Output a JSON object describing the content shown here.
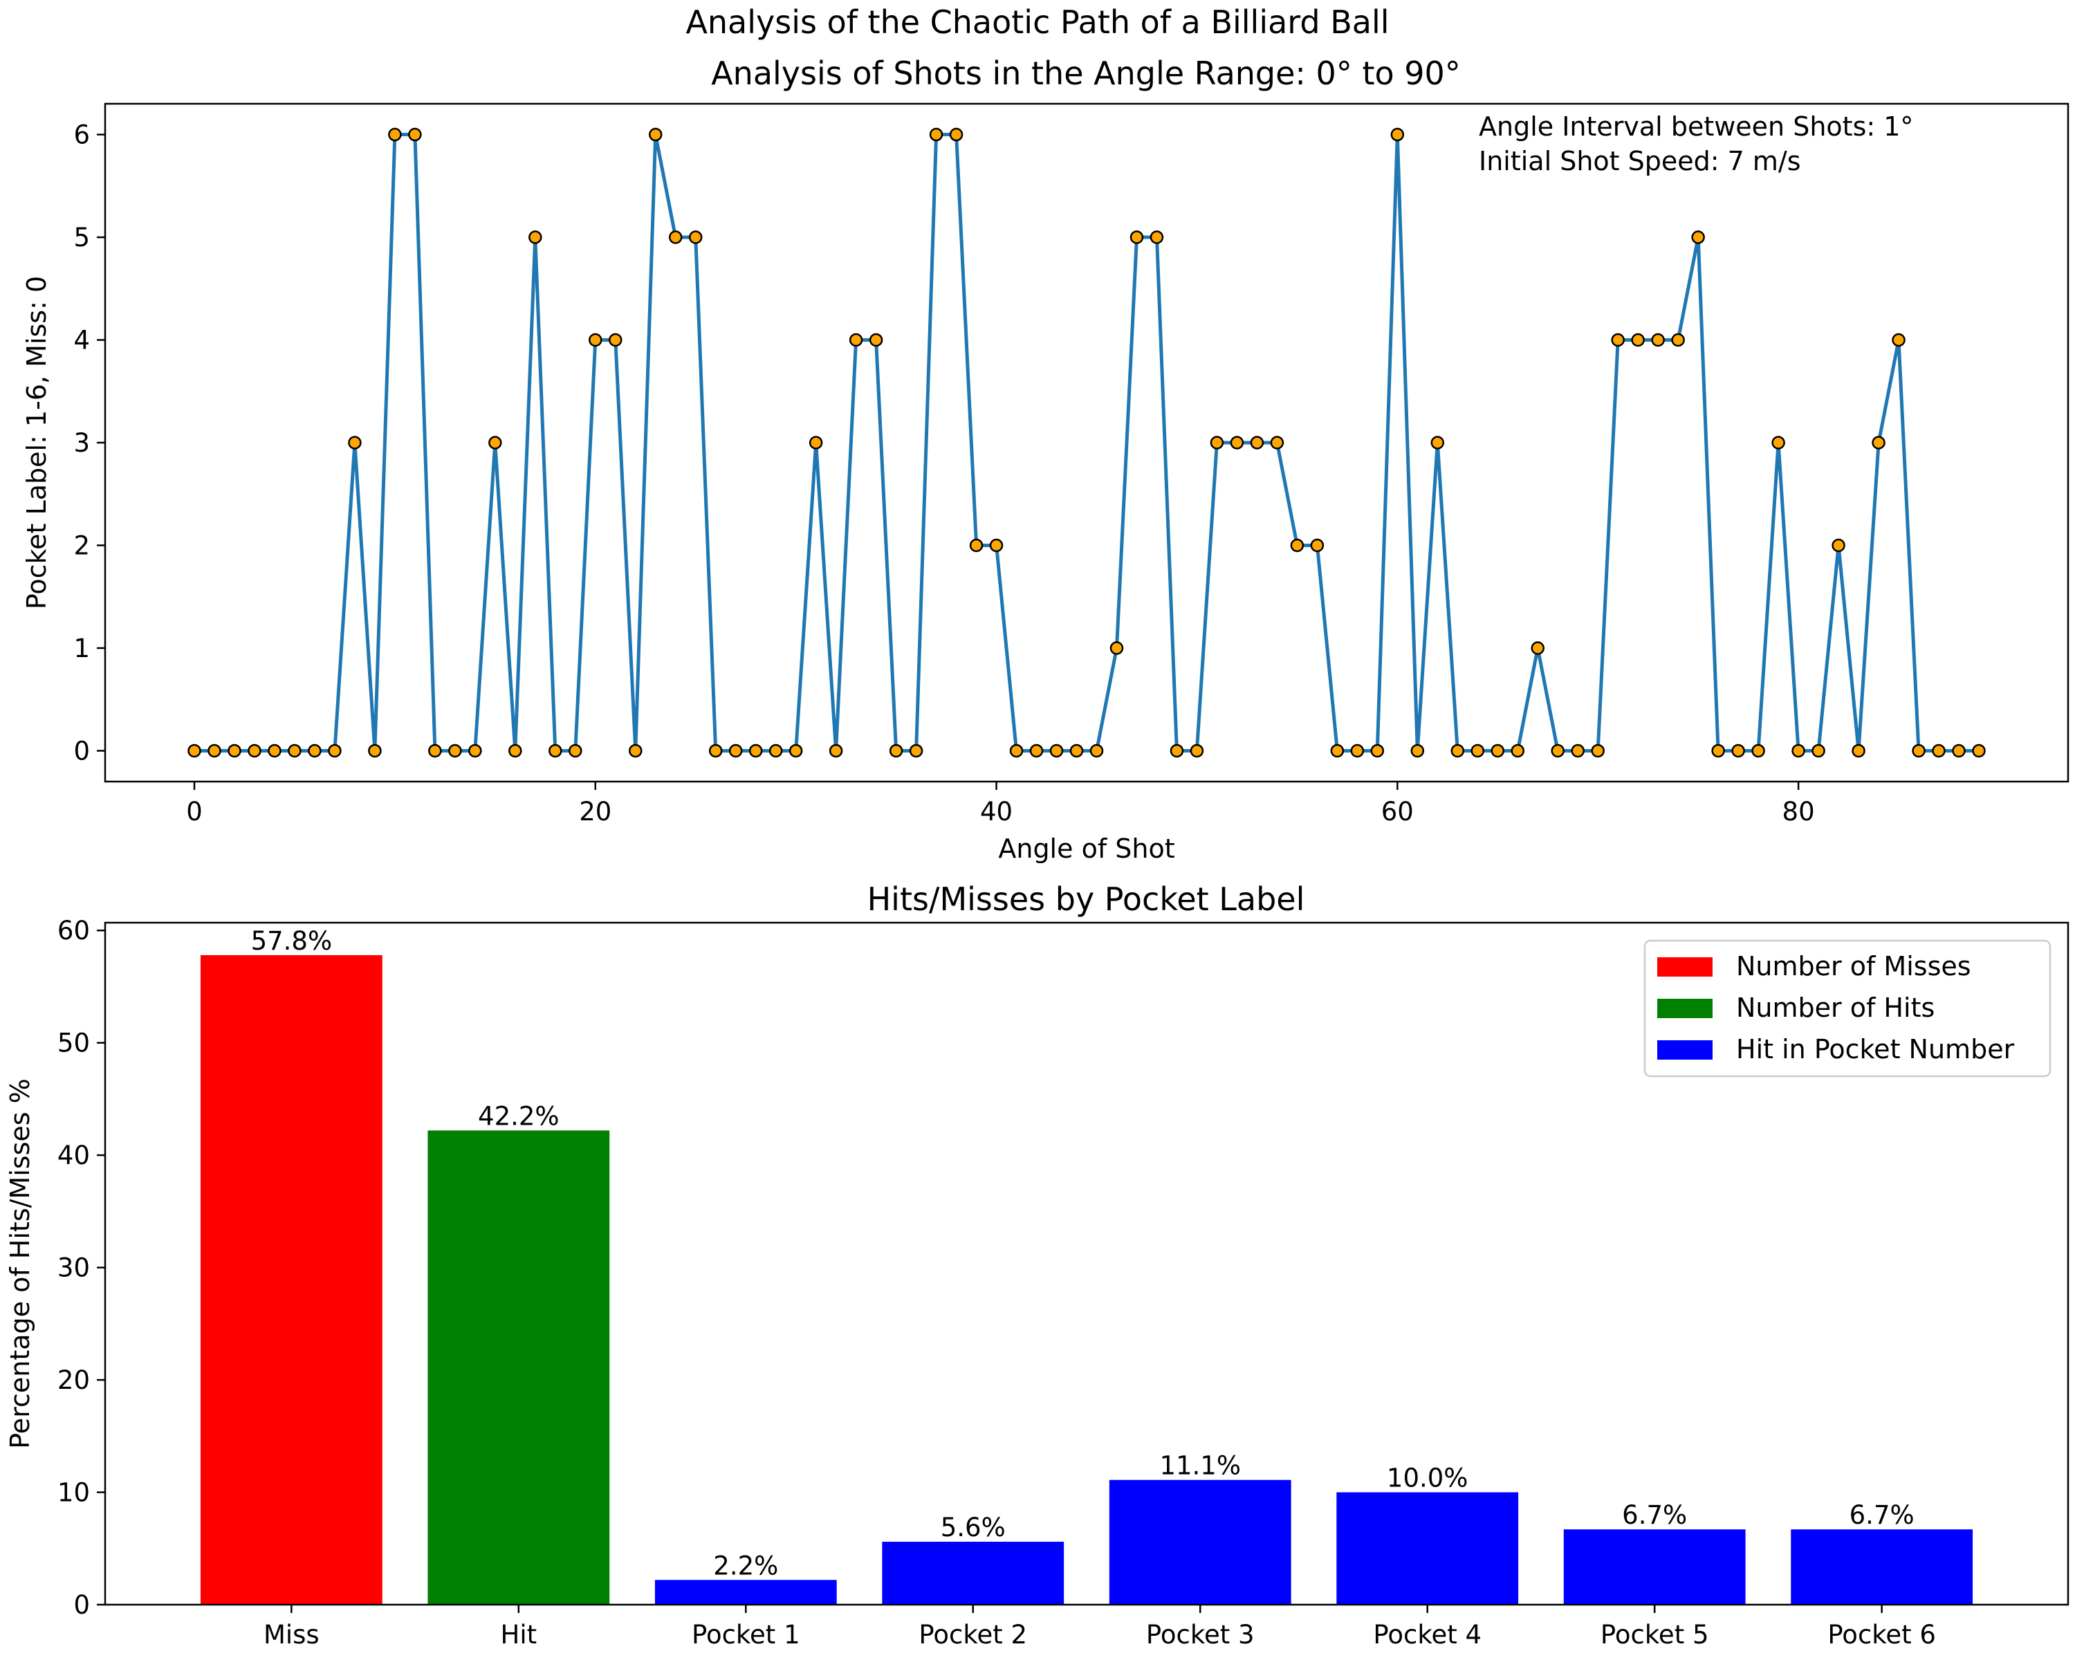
{
  "figure_title": "Analysis of the Chaotic Path of a Billiard Ball",
  "chart_data": [
    {
      "type": "line",
      "title": "Analysis of Shots in the Angle Range: 0° to 90°",
      "xlabel": "Angle of Shot",
      "ylabel": "Pocket Label: 1-6, Miss: 0",
      "xlim": [
        -4.45,
        93.45
      ],
      "ylim": [
        -0.3,
        6.3
      ],
      "xticks": [
        0,
        20,
        40,
        60,
        80
      ],
      "yticks": [
        0,
        1,
        2,
        3,
        4,
        5,
        6
      ],
      "grid": false,
      "annotations": [
        "Angle Interval between Shots: 1°",
        "Initial Shot Speed: 7 m/s"
      ],
      "line_color": "#1f77b4",
      "marker_color": "#ffa500",
      "x": [
        0,
        1,
        2,
        3,
        4,
        5,
        6,
        7,
        8,
        9,
        10,
        11,
        12,
        13,
        14,
        15,
        16,
        17,
        18,
        19,
        20,
        21,
        22,
        23,
        24,
        25,
        26,
        27,
        28,
        29,
        30,
        31,
        32,
        33,
        34,
        35,
        36,
        37,
        38,
        39,
        40,
        41,
        42,
        43,
        44,
        45,
        46,
        47,
        48,
        49,
        50,
        51,
        52,
        53,
        54,
        55,
        56,
        57,
        58,
        59,
        60,
        61,
        62,
        63,
        64,
        65,
        66,
        67,
        68,
        69,
        70,
        71,
        72,
        73,
        74,
        75,
        76,
        77,
        78,
        79,
        80,
        81,
        82,
        83,
        84,
        85,
        86,
        87,
        88,
        89
      ],
      "y": [
        0,
        0,
        0,
        0,
        0,
        0,
        0,
        0,
        3,
        0,
        6,
        6,
        0,
        0,
        0,
        3,
        0,
        5,
        0,
        0,
        4,
        4,
        0,
        6,
        5,
        5,
        0,
        0,
        0,
        0,
        0,
        3,
        0,
        4,
        4,
        0,
        0,
        6,
        6,
        2,
        2,
        0,
        0,
        0,
        0,
        0,
        1,
        5,
        5,
        0,
        0,
        3,
        3,
        3,
        3,
        2,
        2,
        0,
        0,
        0,
        6,
        0,
        3,
        0,
        0,
        0,
        0,
        1,
        0,
        0,
        0,
        4,
        4,
        4,
        4,
        5,
        0,
        0,
        0,
        3,
        0,
        0,
        2,
        0,
        3,
        4,
        0,
        0,
        0,
        0
      ]
    },
    {
      "type": "bar",
      "title": "Hits/Misses by Pocket Label",
      "xlabel": "",
      "ylabel": "Percentage of Hits/Misses %",
      "categories": [
        "Miss",
        "Hit",
        "Pocket 1",
        "Pocket 2",
        "Pocket 3",
        "Pocket 4",
        "Pocket 5",
        "Pocket 6"
      ],
      "values": [
        57.8,
        42.2,
        2.2,
        5.6,
        11.1,
        10.0,
        6.7,
        6.7
      ],
      "value_labels": [
        "57.8%",
        "42.2%",
        "2.2%",
        "5.6%",
        "11.1%",
        "10.0%",
        "6.7%",
        "6.7%"
      ],
      "colors": [
        "#ff0000",
        "#008000",
        "#0000ff",
        "#0000ff",
        "#0000ff",
        "#0000ff",
        "#0000ff",
        "#0000ff"
      ],
      "ylim": [
        0,
        60.69
      ],
      "yticks": [
        0,
        10,
        20,
        30,
        40,
        50,
        60
      ],
      "grid": false,
      "legend_position": "top-right",
      "legend": [
        {
          "label": "Number of Misses",
          "color": "#ff0000"
        },
        {
          "label": "Number of Hits",
          "color": "#008000"
        },
        {
          "label": "Hit in Pocket Number",
          "color": "#0000ff"
        }
      ]
    }
  ]
}
